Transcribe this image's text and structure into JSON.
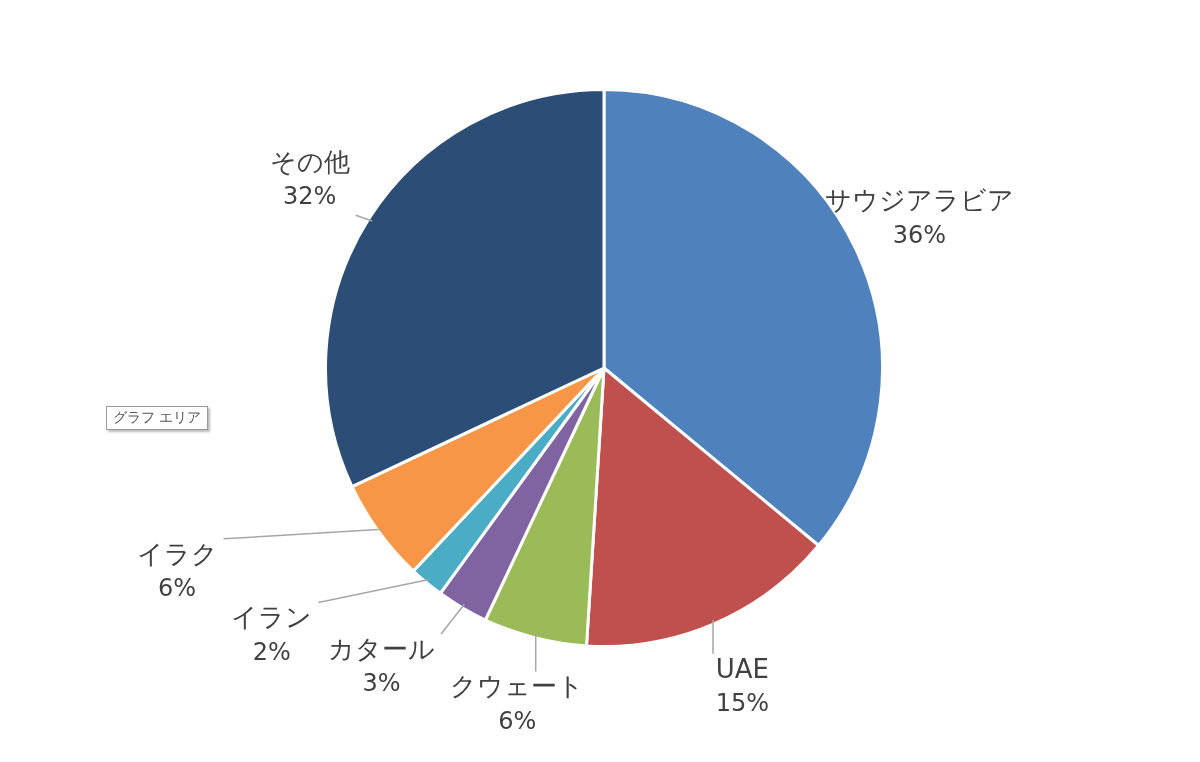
{
  "chart_data": {
    "type": "pie",
    "categories": [
      "サウジアラビア",
      "UAE",
      "クウェート",
      "カタール",
      "イラン",
      "イラク",
      "その他"
    ],
    "values": [
      36,
      15,
      6,
      3,
      2,
      6,
      32
    ],
    "value_labels": [
      "36%",
      "15%",
      "6%",
      "3%",
      "2%",
      "6%",
      "32%"
    ],
    "colors": [
      "#4f81bd",
      "#c0504d",
      "#9bbb59",
      "#8064a2",
      "#4bacc6",
      "#f79646",
      "#2c4d75"
    ],
    "annotations": [
      "グラフ エリア"
    ],
    "legend": false
  }
}
